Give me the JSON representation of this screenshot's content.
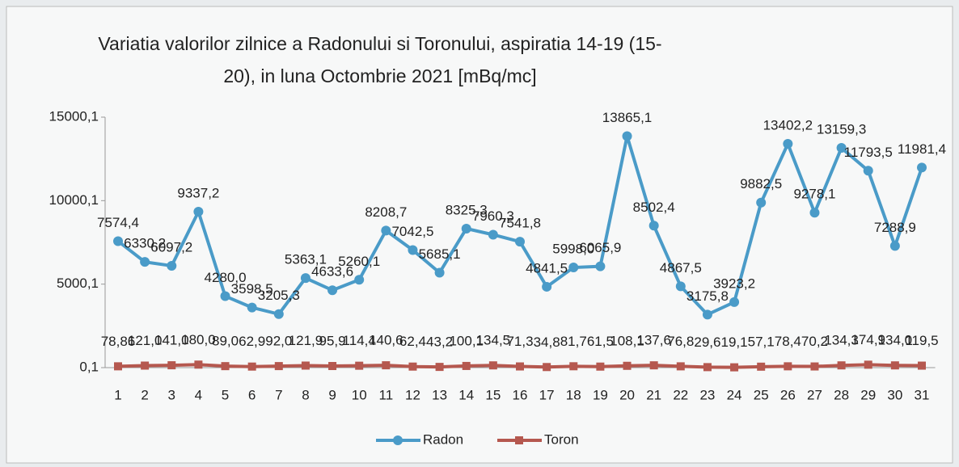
{
  "chart_data": {
    "type": "line",
    "title": "Variatia valorilor zilnice a Radonului si Toronului, aspiratia 14-19 (15-20), in luna Octombrie 2021 [mBq/mc]",
    "categories": [
      "1",
      "2",
      "3",
      "4",
      "5",
      "6",
      "7",
      "8",
      "9",
      "10",
      "11",
      "12",
      "13",
      "14",
      "15",
      "16",
      "17",
      "18",
      "19",
      "20",
      "21",
      "22",
      "23",
      "24",
      "25",
      "26",
      "27",
      "28",
      "29",
      "30",
      "31"
    ],
    "series": [
      {
        "name": "Radon",
        "color": "#4a9bc8",
        "values": [
          7574.4,
          6330.2,
          6097.2,
          9337.2,
          4280.0,
          3598.5,
          3205.3,
          5363.1,
          4633.6,
          5260.1,
          8208.7,
          7042.5,
          5685.1,
          8325.3,
          7960.3,
          7541.8,
          4841.5,
          5998.0,
          6065.9,
          13865.1,
          8502.4,
          4867.5,
          3175.8,
          3923.2,
          9882.5,
          13402.2,
          9278.1,
          13159.3,
          11793.5,
          7288.9,
          11981.4
        ],
        "value_labels": [
          "7574,4",
          "6330,2",
          "6097,2",
          "9337,2",
          "4280,0",
          "3598,5",
          "3205,3",
          "5363,1",
          "4633,6",
          "5260,1",
          "8208,7",
          "7042,5",
          "5685,1",
          "8325,3",
          "7960,3",
          "7541,8",
          "4841,5",
          "5998,0",
          "6065,9",
          "13865,1",
          "8502,4",
          "4867,5",
          "3175,8",
          "3923,2",
          "9882,5",
          "13402,2",
          "9278,1",
          "13159,3",
          "11793,5",
          "7288,9",
          "11981,4"
        ]
      },
      {
        "name": "Toron",
        "color": "#b5584f",
        "values": [
          78.86,
          121.0,
          141.0,
          180.0,
          89.0,
          62.9,
          92.0,
          121.9,
          95.9,
          114.4,
          140.6,
          62.4,
          43.2,
          100.1,
          134.5,
          71.3,
          34.8,
          81.7,
          61.5,
          108.1,
          137.6,
          76.8,
          29.6,
          19.1,
          57.1,
          78.4,
          70.2,
          134.3,
          174.9,
          134.0,
          119.5
        ],
        "value_labels": [
          "78,86",
          "121,0",
          "141,0",
          "180,0",
          "89,0",
          "62,9",
          "92,0",
          "121,9",
          "95,9",
          "114,4",
          "140,6",
          "62,4",
          "43,2",
          "100,1",
          "134,5",
          "71,3",
          "34,8",
          "81,7",
          "61,5",
          "108,1",
          "137,6",
          "76,8",
          "29,6",
          "19,1",
          "57,1",
          "78,4",
          "70,2",
          "134,3",
          "174,9",
          "134,0",
          "119,5"
        ]
      }
    ],
    "ylim": [
      0.1,
      15000.1
    ],
    "yticks": [
      {
        "value": 0.1,
        "label": "0,1"
      },
      {
        "value": 5000.1,
        "label": "5000,1"
      },
      {
        "value": 10000.1,
        "label": "10000,1"
      },
      {
        "value": 15000.1,
        "label": "15000,1"
      }
    ],
    "grid": false,
    "legend": "bottom"
  }
}
